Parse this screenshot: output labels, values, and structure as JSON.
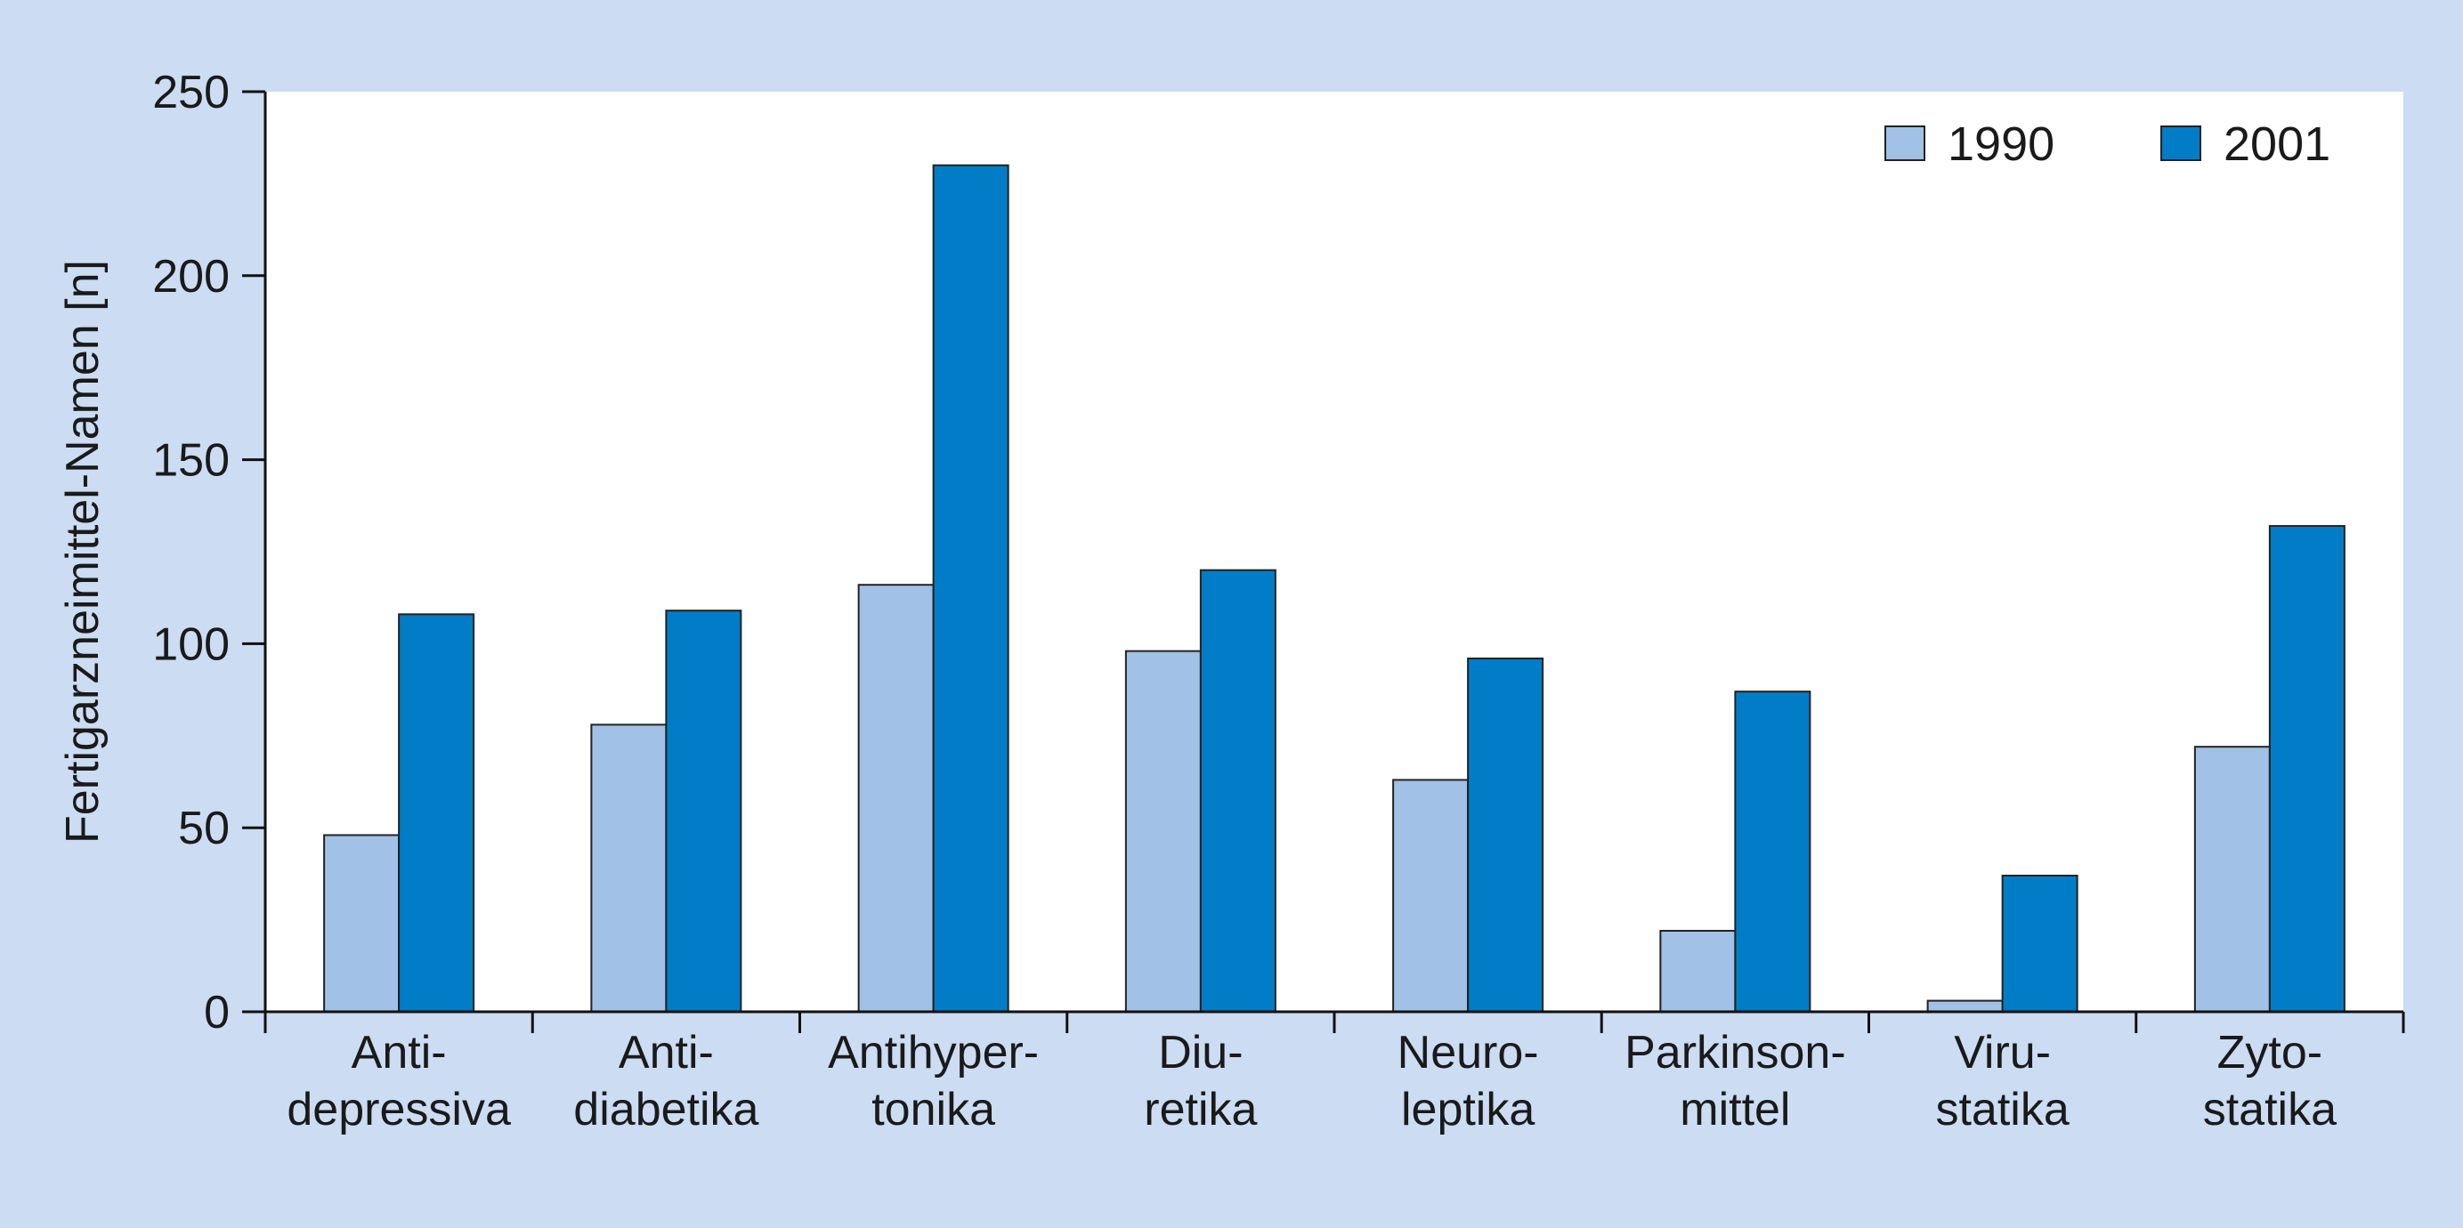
{
  "chart_data": {
    "type": "bar",
    "categories": [
      [
        "Anti-",
        "depressiva"
      ],
      [
        "Anti-",
        "diabetika"
      ],
      [
        "Antihyper-",
        "tonika"
      ],
      [
        "Diu-",
        "retika"
      ],
      [
        "Neuro-",
        "leptika"
      ],
      [
        "Parkinson-",
        "mittel"
      ],
      [
        "Viru-",
        "statika"
      ],
      [
        "Zyto-",
        "statika"
      ]
    ],
    "series": [
      {
        "name": "1990",
        "color": "#a1c1e6",
        "values": [
          48,
          78,
          116,
          98,
          63,
          22,
          3,
          72
        ]
      },
      {
        "name": "2001",
        "color": "#007dc6",
        "values": [
          108,
          109,
          230,
          120,
          96,
          87,
          37,
          132
        ]
      }
    ],
    "title": "",
    "xlabel": "",
    "ylabel": "Fertigarzneimittel-Namen [n]",
    "ylim": [
      0,
      250
    ],
    "yticks": [
      0,
      50,
      100,
      150,
      200,
      250
    ],
    "legend_position": "top-right",
    "grid": false,
    "background_color": "#ccdcf2",
    "plot_background_color": "#ffffff"
  }
}
